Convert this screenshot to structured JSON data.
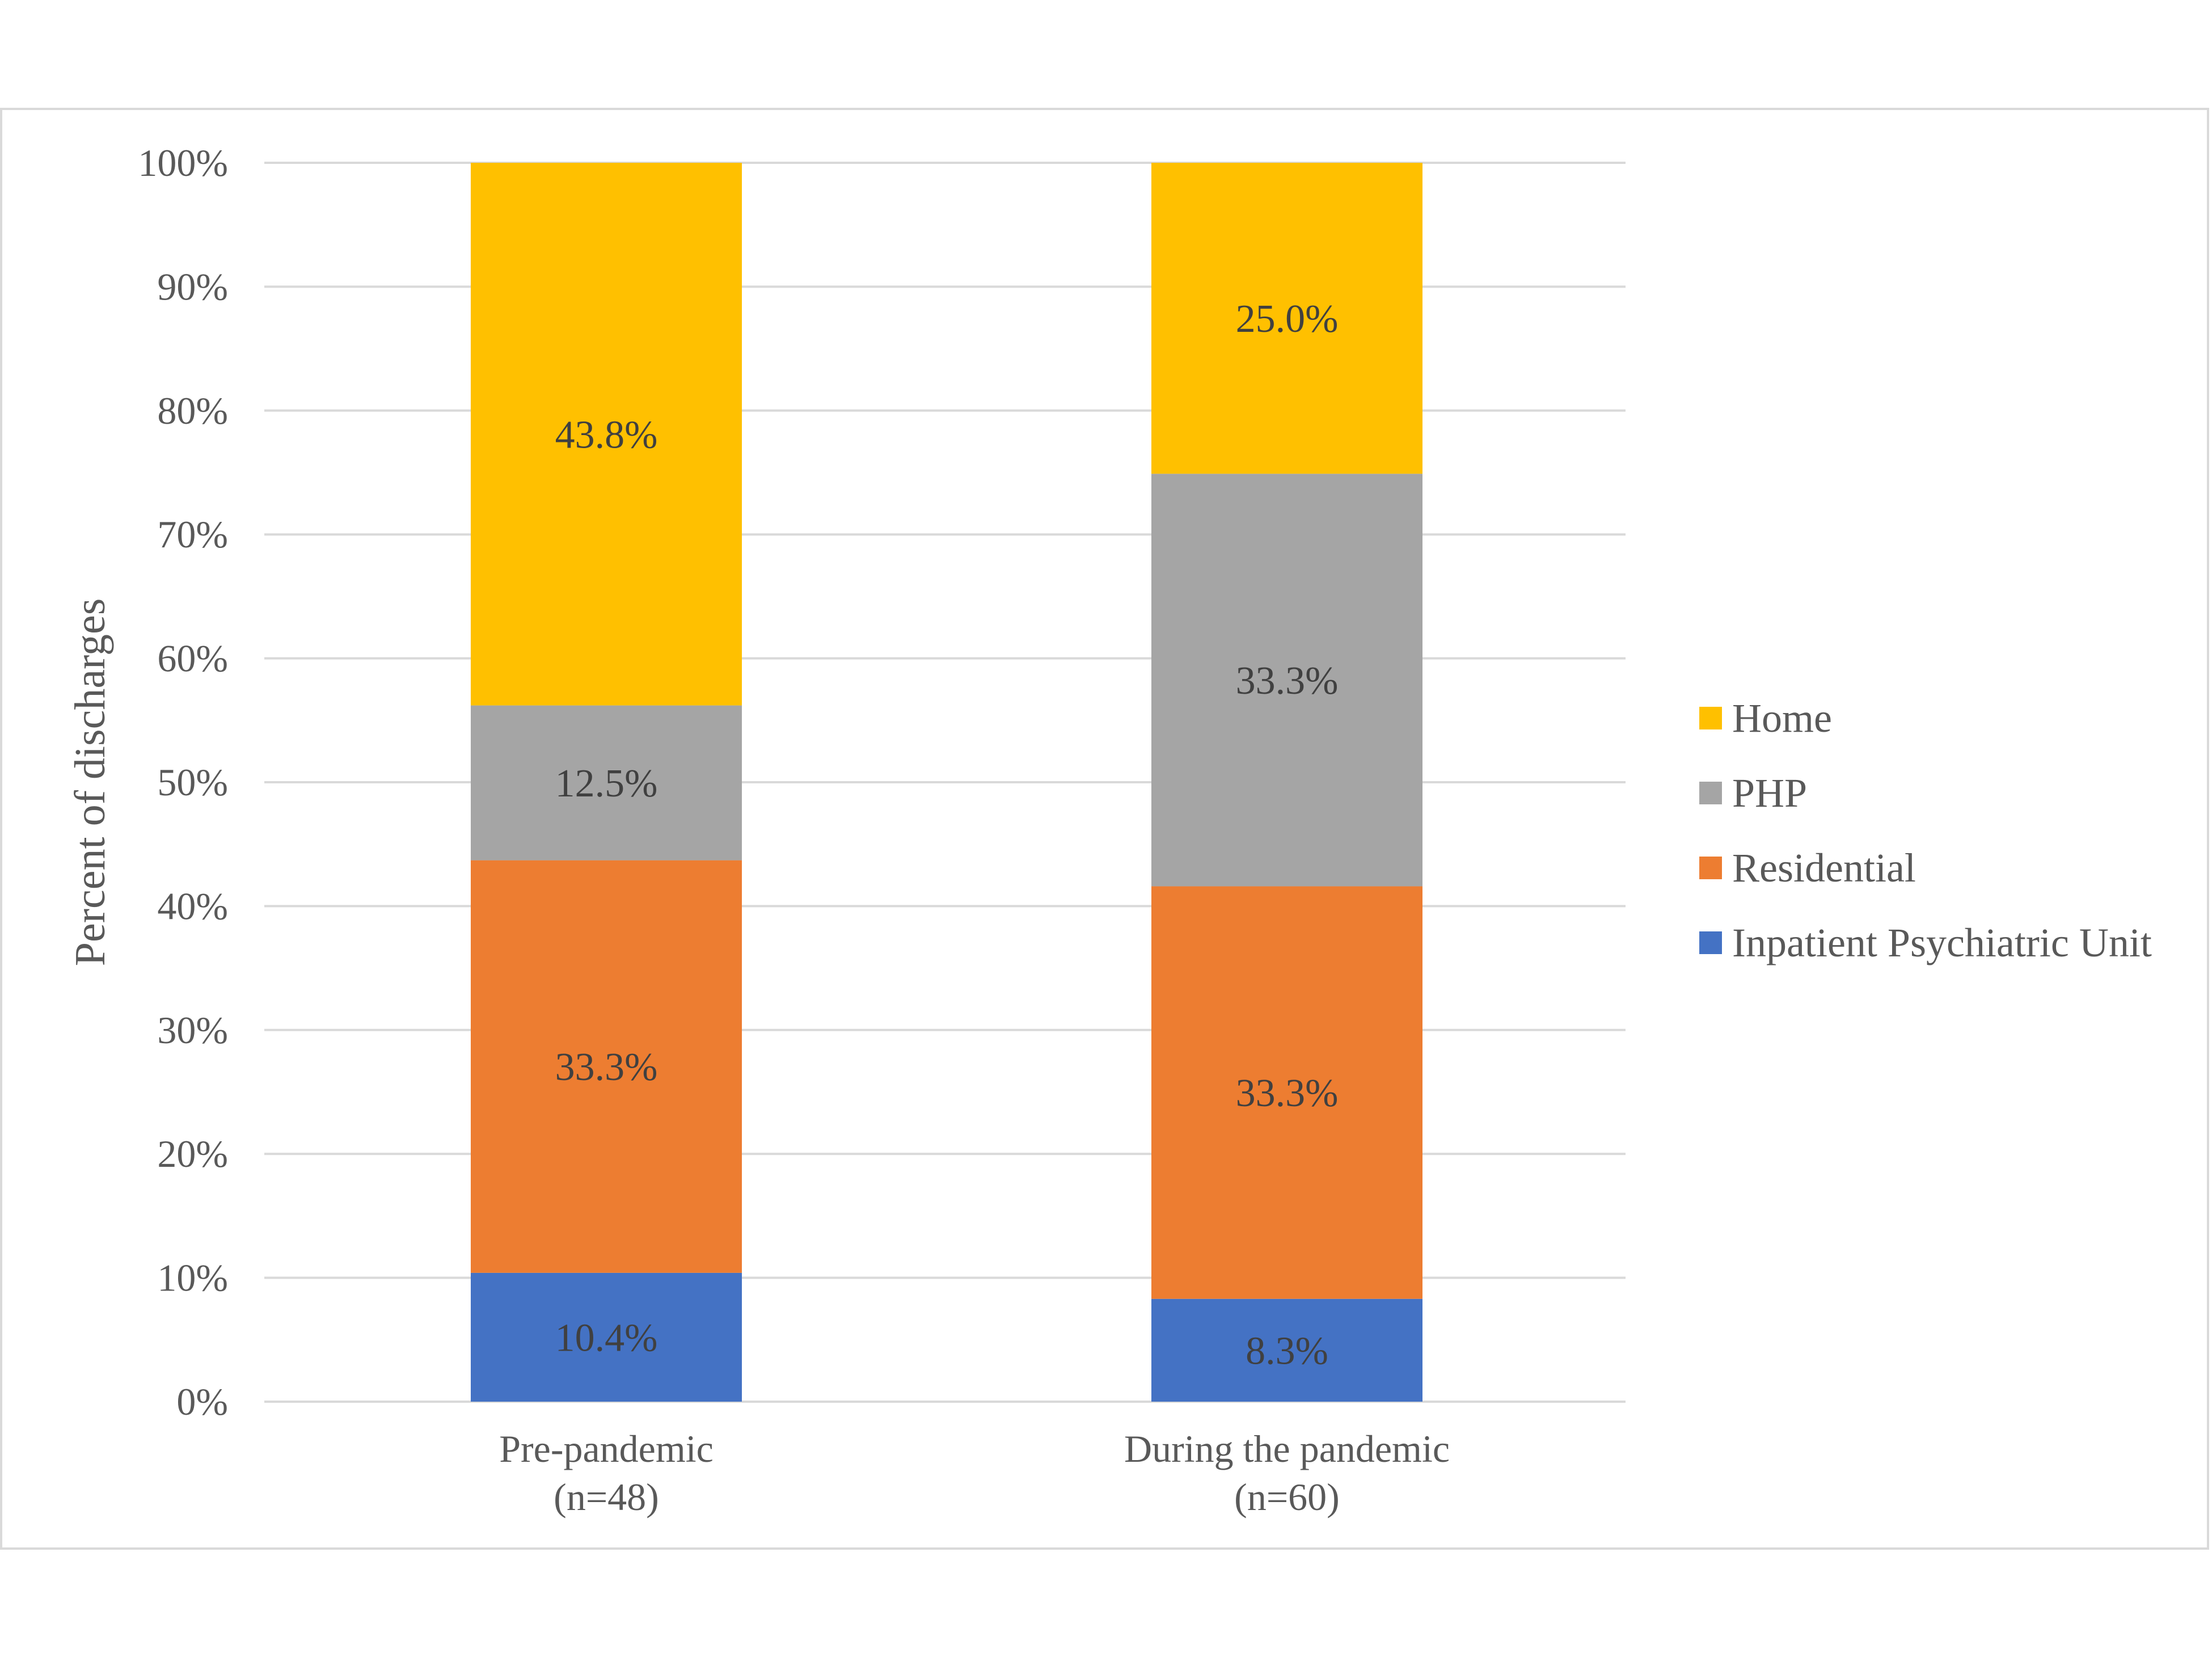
{
  "chart_data": {
    "type": "bar",
    "stacked": true,
    "categories": [
      [
        "Pre-pandemic",
        "(n=48)"
      ],
      [
        "During the pandemic",
        "(n=60)"
      ]
    ],
    "series": [
      {
        "name": "Inpatient Psychiatric Unit",
        "color": "#4472C4",
        "values": [
          10.4,
          8.3
        ],
        "labels": [
          "10.4%",
          "8.3%"
        ]
      },
      {
        "name": "Residential",
        "color": "#ED7D31",
        "values": [
          33.3,
          33.3
        ],
        "labels": [
          "33.3%",
          "33.3%"
        ]
      },
      {
        "name": "PHP",
        "color": "#A5A5A5",
        "values": [
          12.5,
          33.3
        ],
        "labels": [
          "12.5%",
          "33.3%"
        ]
      },
      {
        "name": "Home",
        "color": "#FFC000",
        "values": [
          43.8,
          25.0
        ],
        "labels": [
          "43.8%",
          "25.0%"
        ]
      }
    ],
    "ylabel": "Percent of discharges",
    "ylim": [
      0,
      100
    ],
    "yticks": [
      "0%",
      "10%",
      "20%",
      "30%",
      "40%",
      "50%",
      "60%",
      "70%",
      "80%",
      "90%",
      "100%"
    ],
    "grid": true,
    "legend_position": "right",
    "legend_order": [
      "Home",
      "PHP",
      "Residential",
      "Inpatient Psychiatric Unit"
    ]
  }
}
